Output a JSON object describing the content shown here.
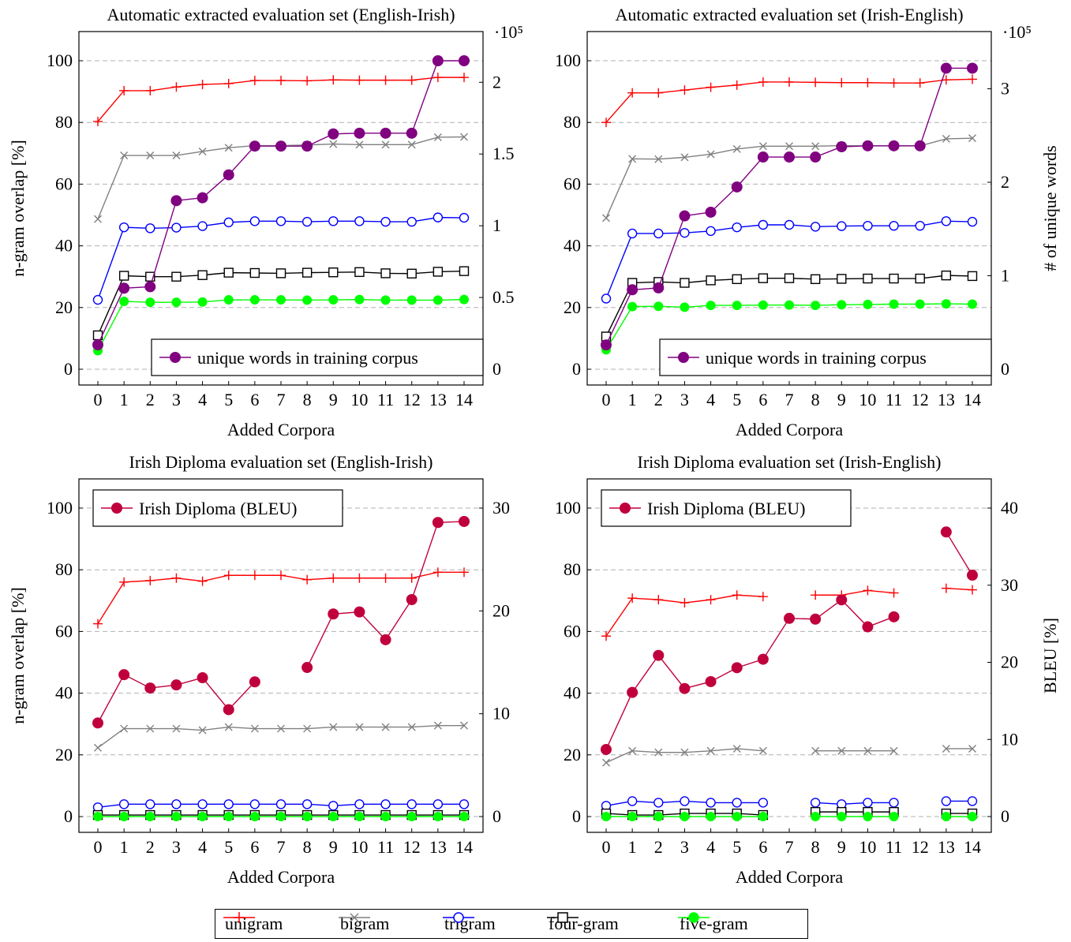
{
  "colors": {
    "unigram": "#ff0000",
    "bigram": "#808080",
    "trigram": "#0000ff",
    "four-gram": "#000000",
    "five-gram": "#00ff00",
    "unique_words": "#800080",
    "bleu": "#c0003c",
    "grid": "#b0b0b0"
  },
  "legend": {
    "unigram": "unigram",
    "bigram": "bigram",
    "trigram": "trigram",
    "fourgram": "four-gram",
    "fivegram": "five-gram"
  },
  "chart_data": [
    {
      "type": "line",
      "title": "Automatic extracted evaluation set (English-Irish)",
      "xlabel": "Added Corpora",
      "ylabel": "n-gram overlap [%]",
      "y2label": "",
      "y2_multiplier": "·10⁵",
      "xlim": [
        0,
        14
      ],
      "ylim": [
        0,
        100
      ],
      "y2lim": [
        0,
        2.15
      ],
      "x": [
        0,
        1,
        2,
        3,
        4,
        5,
        6,
        7,
        8,
        9,
        10,
        11,
        12,
        13,
        14
      ],
      "grid": "horizontal dashed",
      "legend_position": "bottom-right",
      "yticks": [
        0,
        20,
        40,
        60,
        80,
        100
      ],
      "y2ticks": [
        "0",
        "0.5",
        "1",
        "1.5",
        "2"
      ],
      "y2tick_values": [
        0,
        0.5,
        1,
        1.5,
        2
      ],
      "series": [
        {
          "name": "unigram",
          "axis": "left",
          "marker": "plus",
          "values": [
            80.3,
            90.3,
            90.3,
            91.5,
            92.3,
            92.6,
            93.6,
            93.6,
            93.5,
            93.8,
            93.7,
            93.7,
            93.7,
            94.6,
            94.6
          ]
        },
        {
          "name": "bigram",
          "axis": "left",
          "marker": "x",
          "values": [
            48.7,
            69.3,
            69.3,
            69.3,
            70.6,
            71.8,
            72.5,
            72.5,
            72.7,
            73.0,
            72.8,
            72.8,
            72.8,
            75.2,
            75.3
          ]
        },
        {
          "name": "trigram",
          "axis": "left",
          "marker": "circle-open",
          "values": [
            22.5,
            46.0,
            45.7,
            45.9,
            46.4,
            47.6,
            48.0,
            48.0,
            47.8,
            48.0,
            48.0,
            47.8,
            47.8,
            49.2,
            49.1
          ]
        },
        {
          "name": "four-gram",
          "axis": "left",
          "marker": "square-open",
          "values": [
            11.0,
            30.3,
            30.0,
            30.0,
            30.5,
            31.3,
            31.2,
            31.1,
            31.3,
            31.4,
            31.5,
            31.1,
            31.0,
            31.6,
            31.8
          ]
        },
        {
          "name": "five-gram",
          "axis": "left",
          "marker": "circle-filled",
          "values": [
            6.0,
            22.0,
            21.7,
            21.7,
            21.8,
            22.5,
            22.5,
            22.5,
            22.4,
            22.5,
            22.6,
            22.4,
            22.4,
            22.4,
            22.6
          ]
        },
        {
          "name": "unique words in training corpus",
          "axis": "right",
          "marker": "circle-filled",
          "values": [
            0.17,
            0.565,
            0.575,
            1.175,
            1.195,
            1.355,
            1.555,
            1.555,
            1.555,
            1.64,
            1.645,
            1.645,
            1.645,
            2.15,
            2.15
          ]
        }
      ],
      "legend": [
        "unique words in training corpus"
      ]
    },
    {
      "type": "line",
      "title": "Automatic extracted evaluation set (Irish-English)",
      "xlabel": "Added Corpora",
      "ylabel": "",
      "y2label": "# of unique words",
      "y2_multiplier": "·10⁵",
      "xlim": [
        0,
        14
      ],
      "ylim": [
        0,
        100
      ],
      "y2lim": [
        0,
        3.3
      ],
      "x": [
        0,
        1,
        2,
        3,
        4,
        5,
        6,
        7,
        8,
        9,
        10,
        11,
        12,
        13,
        14
      ],
      "grid": "horizontal dashed",
      "legend_position": "bottom-right",
      "yticks": [
        0,
        20,
        40,
        60,
        80,
        100
      ],
      "y2ticks": [
        "0",
        "1",
        "2",
        "3"
      ],
      "y2tick_values": [
        0,
        1,
        2,
        3
      ],
      "series": [
        {
          "name": "unigram",
          "axis": "left",
          "marker": "plus",
          "values": [
            80.0,
            89.6,
            89.6,
            90.5,
            91.4,
            92.1,
            93.1,
            93.1,
            93.0,
            92.9,
            92.9,
            92.8,
            92.8,
            93.8,
            94.0
          ]
        },
        {
          "name": "bigram",
          "axis": "left",
          "marker": "x",
          "values": [
            49.0,
            68.2,
            68.1,
            68.7,
            69.7,
            71.4,
            72.3,
            72.3,
            72.3,
            72.5,
            72.4,
            72.4,
            72.4,
            74.7,
            74.9
          ]
        },
        {
          "name": "trigram",
          "axis": "left",
          "marker": "circle-open",
          "values": [
            22.9,
            44.0,
            44.0,
            44.2,
            44.8,
            46.0,
            46.8,
            46.8,
            46.2,
            46.4,
            46.5,
            46.5,
            46.5,
            48.0,
            47.8
          ]
        },
        {
          "name": "four-gram",
          "axis": "left",
          "marker": "square-open",
          "values": [
            10.6,
            28.0,
            28.3,
            28.0,
            28.8,
            29.2,
            29.5,
            29.5,
            29.2,
            29.3,
            29.4,
            29.4,
            29.4,
            30.4,
            30.2
          ]
        },
        {
          "name": "five-gram",
          "axis": "left",
          "marker": "circle-filled",
          "values": [
            6.3,
            20.3,
            20.4,
            20.1,
            20.7,
            20.7,
            20.8,
            20.8,
            20.7,
            20.9,
            21.0,
            21.1,
            21.1,
            21.2,
            21.1
          ]
        },
        {
          "name": "unique words in training corpus",
          "axis": "right",
          "marker": "circle-filled",
          "values": [
            0.26,
            0.85,
            0.87,
            1.64,
            1.68,
            1.95,
            2.27,
            2.27,
            2.27,
            2.38,
            2.39,
            2.39,
            2.39,
            3.22,
            3.22
          ]
        }
      ],
      "legend": [
        "unique words in training corpus"
      ]
    },
    {
      "type": "line",
      "title": "Irish Diploma evaluation set (English-Irish)",
      "xlabel": "Added Corpora",
      "ylabel": "n-gram overlap [%]",
      "y2label": "",
      "y2_multiplier": "",
      "xlim": [
        0,
        14
      ],
      "ylim": [
        0,
        100
      ],
      "y2lim": [
        0,
        30
      ],
      "x": [
        0,
        1,
        2,
        3,
        4,
        5,
        6,
        7,
        8,
        9,
        10,
        11,
        12,
        13,
        14
      ],
      "grid": "horizontal dashed",
      "legend_position": "top-left",
      "yticks": [
        0,
        20,
        40,
        60,
        80,
        100
      ],
      "y2ticks": [
        "0",
        "10",
        "20",
        "30"
      ],
      "y2tick_values": [
        0,
        10,
        20,
        30
      ],
      "series": [
        {
          "name": "unigram",
          "axis": "left",
          "marker": "plus",
          "values": [
            62.5,
            76.0,
            76.5,
            77.3,
            76.3,
            78.2,
            78.2,
            78.2,
            76.8,
            77.3,
            77.3,
            77.3,
            77.3,
            79.2,
            79.2
          ]
        },
        {
          "name": "bigram",
          "axis": "left",
          "marker": "x",
          "values": [
            22.3,
            28.5,
            28.5,
            28.5,
            28.0,
            29.0,
            28.5,
            28.5,
            28.5,
            29.0,
            29.0,
            29.0,
            29.0,
            29.5,
            29.5
          ]
        },
        {
          "name": "trigram",
          "axis": "left",
          "marker": "circle-open",
          "values": [
            3.0,
            4.0,
            4.0,
            4.0,
            4.0,
            4.0,
            4.0,
            4.0,
            4.0,
            3.5,
            4.0,
            4.0,
            4.0,
            4.0,
            4.0
          ]
        },
        {
          "name": "four-gram",
          "axis": "left",
          "marker": "square-open",
          "values": [
            0.5,
            0.5,
            0.5,
            0.5,
            0.5,
            0.5,
            0.5,
            0.5,
            0.5,
            0.5,
            0.5,
            0.5,
            0.5,
            0.5,
            0.5
          ]
        },
        {
          "name": "five-gram",
          "axis": "left",
          "marker": "circle-filled",
          "values": [
            0,
            0,
            0,
            0,
            0,
            0,
            0,
            0,
            0,
            0,
            0,
            0,
            0,
            0,
            0
          ]
        },
        {
          "name": "Irish Diploma (BLEU)",
          "axis": "right",
          "marker": "circle-filled",
          "values": [
            9.1,
            13.8,
            12.5,
            12.8,
            13.5,
            10.4,
            13.1,
            null,
            14.5,
            19.7,
            19.9,
            17.2,
            21.1,
            28.6,
            28.7
          ]
        }
      ],
      "legend": [
        "Irish Diploma (BLEU)"
      ]
    },
    {
      "type": "line",
      "title": "Irish Diploma evaluation set (Irish-English)",
      "xlabel": "Added Corpora",
      "ylabel": "",
      "y2label": "BLEU [%]",
      "y2_multiplier": "",
      "xlim": [
        0,
        14
      ],
      "ylim": [
        0,
        100
      ],
      "y2lim": [
        0,
        40
      ],
      "x": [
        0,
        1,
        2,
        3,
        4,
        5,
        6,
        7,
        8,
        9,
        10,
        11,
        12,
        13,
        14
      ],
      "grid": "horizontal dashed",
      "legend_position": "top-left",
      "yticks": [
        0,
        20,
        40,
        60,
        80,
        100
      ],
      "y2ticks": [
        "0",
        "10",
        "20",
        "30",
        "40"
      ],
      "y2tick_values": [
        0,
        10,
        20,
        30,
        40
      ],
      "series": [
        {
          "name": "unigram",
          "axis": "left",
          "marker": "plus",
          "values": [
            58.5,
            70.8,
            70.3,
            69.3,
            70.3,
            71.8,
            71.3,
            null,
            71.8,
            71.8,
            73.3,
            72.5,
            null,
            74.0,
            73.5
          ]
        },
        {
          "name": "bigram",
          "axis": "left",
          "marker": "x",
          "values": [
            17.5,
            21.3,
            20.8,
            20.8,
            21.3,
            22.0,
            21.3,
            null,
            21.3,
            21.3,
            21.3,
            21.3,
            null,
            22.0,
            22.0
          ]
        },
        {
          "name": "trigram",
          "axis": "left",
          "marker": "circle-open",
          "values": [
            3.5,
            5.0,
            4.5,
            5.0,
            4.5,
            4.5,
            4.5,
            null,
            4.5,
            4.0,
            4.5,
            4.5,
            null,
            5.0,
            5.0
          ]
        },
        {
          "name": "four-gram",
          "axis": "left",
          "marker": "square-open",
          "values": [
            1.0,
            0.5,
            0.5,
            1.0,
            1.0,
            1.0,
            0.5,
            null,
            1.5,
            1.5,
            1.5,
            1.5,
            null,
            1.0,
            1.0
          ]
        },
        {
          "name": "five-gram",
          "axis": "left",
          "marker": "circle-filled",
          "values": [
            0,
            0,
            0,
            0,
            0,
            0,
            0,
            null,
            0,
            0,
            0,
            0,
            null,
            0,
            0
          ]
        },
        {
          "name": "Irish Diploma (BLEU)",
          "axis": "right",
          "marker": "circle-filled",
          "values": [
            8.7,
            16.1,
            20.9,
            16.6,
            17.5,
            19.3,
            20.4,
            25.7,
            25.6,
            28.1,
            24.6,
            25.9,
            null,
            36.9,
            31.3
          ]
        }
      ],
      "legend": [
        "Irish Diploma (BLEU)"
      ]
    }
  ]
}
